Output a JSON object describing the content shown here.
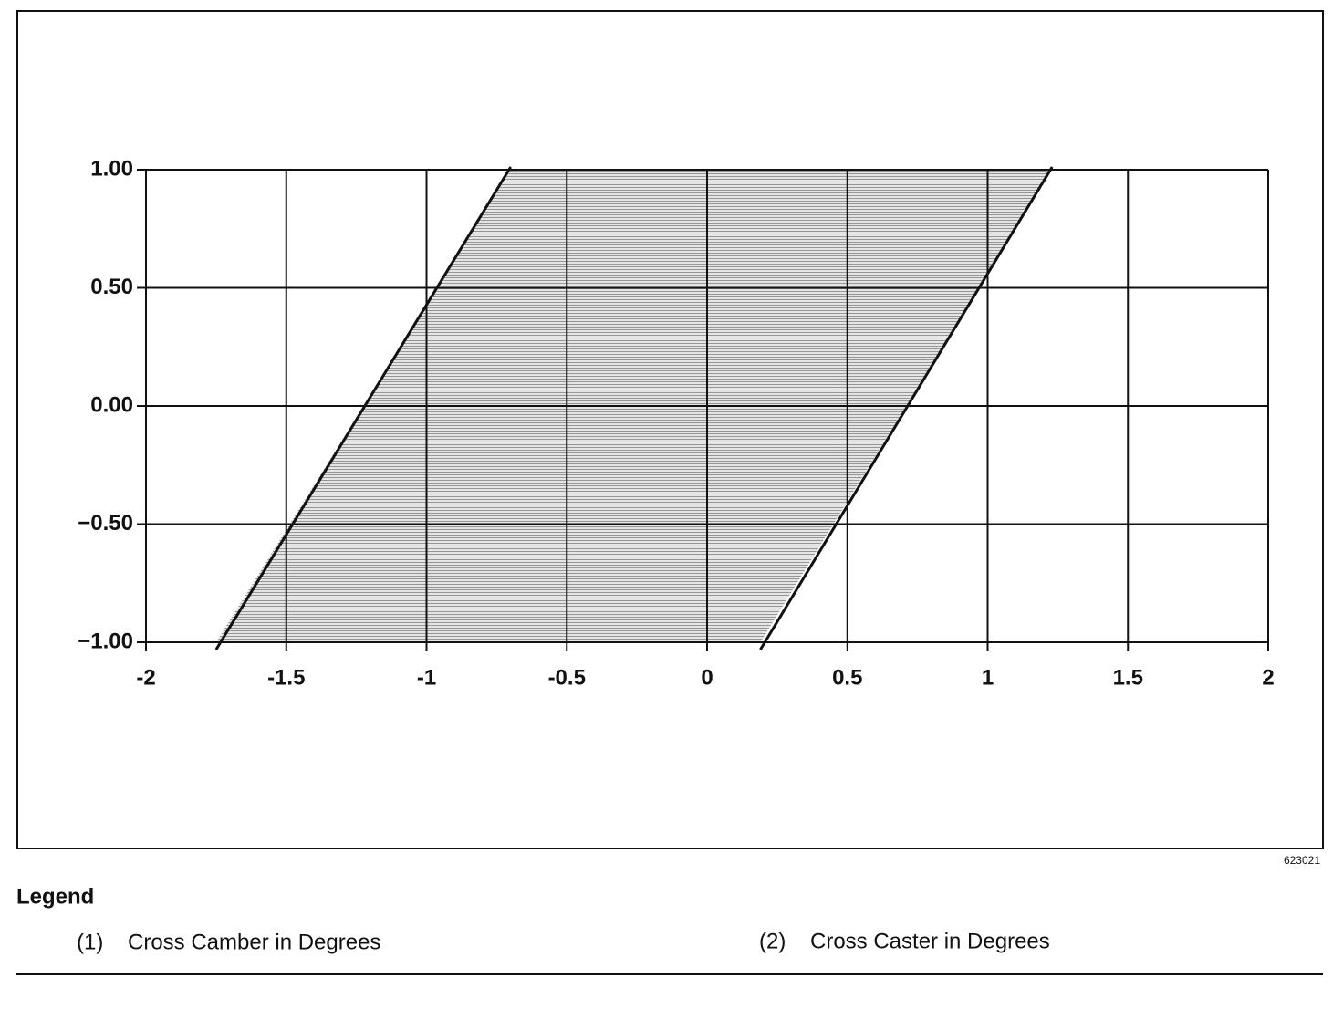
{
  "chart_data": {
    "type": "polygon",
    "region": {
      "x": [
        -1.75,
        -0.7,
        1.23,
        0.19
      ],
      "y": [
        -1,
        1,
        1,
        -1
      ],
      "color": "#b8b8b8"
    },
    "xlim": [
      -2,
      2
    ],
    "xticks": [
      -2,
      -1.5,
      -1,
      -0.5,
      0,
      0.5,
      1,
      1.5,
      2
    ],
    "ylim": [
      -1,
      1
    ],
    "yticks": [
      {
        "value": -1,
        "label": "−1.00"
      },
      {
        "value": -0.5,
        "label": "−0.50"
      },
      {
        "value": 0,
        "label": "0.00"
      },
      {
        "value": 0.5,
        "label": "0.50"
      },
      {
        "value": 1,
        "label": "1.00"
      }
    ],
    "grid": true
  },
  "figure_id": "623021",
  "legend": {
    "title": "Legend",
    "items": [
      {
        "number": "(1)",
        "text": "Cross Camber in Degrees"
      },
      {
        "number": "(2)",
        "text": "Cross Caster in Degrees"
      }
    ]
  }
}
